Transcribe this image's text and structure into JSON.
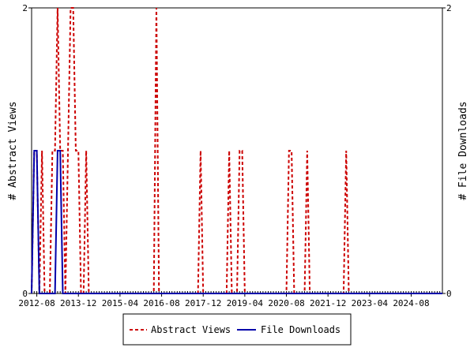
{
  "chart_data": {
    "type": "line",
    "title": "",
    "ylabel_left": "# Abstract Views",
    "ylabel_right": "# File Downloads",
    "ylim_left": [
      0,
      2
    ],
    "ylim_right": [
      0,
      2
    ],
    "yticks_left": [
      "0",
      "2"
    ],
    "yticks_right": [
      "0",
      "2"
    ],
    "x_range": [
      "2012-06",
      "2025-08"
    ],
    "x_tick_labels": [
      "2012-08",
      "2013-12",
      "2015-04",
      "2016-08",
      "2017-12",
      "2019-04",
      "2020-08",
      "2021-12",
      "2023-04",
      "2024-08"
    ],
    "grid": false,
    "legend_position": "bottom",
    "series": [
      {
        "name": "Abstract Views",
        "color": "#cc0000",
        "style": "dashed",
        "x": [
          "2012-06",
          "2012-07",
          "2012-08",
          "2012-09",
          "2012-10",
          "2012-11",
          "2012-12",
          "2013-01",
          "2013-02",
          "2013-03",
          "2013-04",
          "2013-05",
          "2013-06",
          "2013-07",
          "2013-08",
          "2013-09",
          "2013-10",
          "2013-11",
          "2013-12",
          "2014-01",
          "2014-02",
          "2014-03",
          "2014-04",
          "2014-05",
          "2014-06",
          "2014-07",
          "2014-08",
          "2014-09",
          "2014-10",
          "2014-11",
          "2014-12",
          "2015-01",
          "2015-02",
          "2015-03",
          "2015-04",
          "2015-05",
          "2015-06",
          "2015-07",
          "2015-08",
          "2015-09",
          "2015-10",
          "2015-11",
          "2015-12",
          "2016-01",
          "2016-02",
          "2016-03",
          "2016-04",
          "2016-05",
          "2016-06",
          "2016-07",
          "2016-08",
          "2016-09",
          "2016-10",
          "2016-11",
          "2016-12",
          "2017-01",
          "2017-02",
          "2017-03",
          "2017-04",
          "2017-05",
          "2017-06",
          "2017-07",
          "2017-08",
          "2017-09",
          "2017-10",
          "2017-11",
          "2017-12",
          "2018-01",
          "2018-02",
          "2018-03",
          "2018-04",
          "2018-05",
          "2018-06",
          "2018-07",
          "2018-08",
          "2018-09",
          "2018-10",
          "2018-11",
          "2018-12",
          "2019-01",
          "2019-02",
          "2019-03",
          "2019-04",
          "2019-05",
          "2019-06",
          "2019-07",
          "2019-08",
          "2019-09",
          "2019-10",
          "2019-11",
          "2019-12",
          "2020-01",
          "2020-02",
          "2020-03",
          "2020-04",
          "2020-05",
          "2020-06",
          "2020-07",
          "2020-08",
          "2020-09",
          "2020-10",
          "2020-11",
          "2020-12",
          "2021-01",
          "2021-02",
          "2021-03",
          "2021-04",
          "2021-05",
          "2021-06",
          "2021-07",
          "2021-08",
          "2021-09",
          "2021-10",
          "2021-11",
          "2021-12",
          "2022-01",
          "2022-02",
          "2022-03",
          "2022-04",
          "2022-05",
          "2022-06",
          "2022-07",
          "2022-08",
          "2022-09",
          "2022-10",
          "2022-11",
          "2022-12",
          "2023-01",
          "2023-02",
          "2023-03",
          "2023-04",
          "2023-05",
          "2023-06",
          "2023-07",
          "2023-08",
          "2023-09",
          "2023-10",
          "2023-11",
          "2023-12",
          "2024-01",
          "2024-02",
          "2024-03",
          "2024-04",
          "2024-05",
          "2024-06",
          "2024-07",
          "2024-08",
          "2024-09",
          "2024-10",
          "2024-11",
          "2024-12",
          "2025-01",
          "2025-02",
          "2025-03",
          "2025-04",
          "2025-05",
          "2025-06",
          "2025-07",
          "2025-08"
        ],
        "values": [
          0,
          1,
          1,
          0,
          1,
          0,
          0,
          0,
          1,
          1,
          2,
          1,
          1,
          0,
          1,
          2,
          2,
          1,
          1,
          0,
          0,
          1,
          0,
          0,
          0,
          0,
          0,
          0,
          0,
          0,
          0,
          0,
          0,
          0,
          0,
          0,
          0,
          0,
          0,
          0,
          0,
          0,
          0,
          0,
          0,
          0,
          0,
          0,
          2,
          0,
          0,
          0,
          0,
          0,
          0,
          0,
          0,
          0,
          0,
          0,
          0,
          0,
          0,
          0,
          0,
          1,
          0,
          0,
          0,
          0,
          0,
          0,
          0,
          0,
          0,
          0,
          1,
          0,
          0,
          0,
          1,
          1,
          0,
          0,
          0,
          0,
          0,
          0,
          0,
          0,
          0,
          0,
          0,
          0,
          0,
          0,
          0,
          0,
          0,
          1,
          1,
          0,
          0,
          0,
          0,
          0,
          1,
          0,
          0,
          0,
          0,
          0,
          0,
          0,
          0,
          0,
          0,
          0,
          0,
          0,
          0,
          1,
          0,
          0,
          0,
          0,
          0,
          0,
          0,
          0,
          0,
          0,
          0,
          0,
          0,
          0,
          0,
          0,
          0,
          0,
          0,
          0,
          0,
          0,
          0,
          0,
          0,
          0,
          0,
          0,
          0,
          0,
          0,
          0,
          0,
          0,
          0,
          0,
          0
        ]
      },
      {
        "name": "File Downloads",
        "color": "#0000aa",
        "style": "solid",
        "x": [
          "2012-06",
          "2012-07",
          "2012-08",
          "2012-09",
          "2012-10",
          "2012-11",
          "2012-12",
          "2013-01",
          "2013-02",
          "2013-03",
          "2013-04",
          "2013-05",
          "2013-06",
          "2013-07",
          "2013-08",
          "2013-09",
          "2013-10",
          "2013-11",
          "2013-12",
          "2014-01",
          "2014-02",
          "2014-03",
          "2014-04",
          "2014-05",
          "2014-06",
          "2014-07",
          "2014-08",
          "2014-09",
          "2014-10",
          "2014-11",
          "2014-12",
          "2015-01",
          "2015-02",
          "2015-03",
          "2015-04",
          "2015-05",
          "2015-06",
          "2015-07",
          "2015-08",
          "2015-09",
          "2015-10",
          "2015-11",
          "2015-12",
          "2016-01",
          "2016-02",
          "2016-03",
          "2016-04",
          "2016-05",
          "2016-06",
          "2016-07",
          "2016-08",
          "2016-09",
          "2016-10",
          "2016-11",
          "2016-12",
          "2017-01",
          "2017-02",
          "2017-03",
          "2017-04",
          "2017-05",
          "2017-06",
          "2017-07",
          "2017-08",
          "2017-09",
          "2017-10",
          "2017-11",
          "2017-12",
          "2018-01",
          "2018-02",
          "2018-03",
          "2018-04",
          "2018-05",
          "2018-06",
          "2018-07",
          "2018-08",
          "2018-09",
          "2018-10",
          "2018-11",
          "2018-12",
          "2019-01",
          "2019-02",
          "2019-03",
          "2019-04",
          "2019-05",
          "2019-06",
          "2019-07",
          "2019-08",
          "2019-09",
          "2019-10",
          "2019-11",
          "2019-12",
          "2020-01",
          "2020-02",
          "2020-03",
          "2020-04",
          "2020-05",
          "2020-06",
          "2020-07",
          "2020-08",
          "2020-09",
          "2020-10",
          "2020-11",
          "2020-12",
          "2021-01",
          "2021-02",
          "2021-03",
          "2021-04",
          "2021-05",
          "2021-06",
          "2021-07",
          "2021-08",
          "2021-09",
          "2021-10",
          "2021-11",
          "2021-12",
          "2022-01",
          "2022-02",
          "2022-03",
          "2022-04",
          "2022-05",
          "2022-06",
          "2022-07",
          "2022-08",
          "2022-09",
          "2022-10",
          "2022-11",
          "2022-12",
          "2023-01",
          "2023-02",
          "2023-03",
          "2023-04",
          "2023-05",
          "2023-06",
          "2023-07",
          "2023-08",
          "2023-09",
          "2023-10",
          "2023-11",
          "2023-12",
          "2024-01",
          "2024-02",
          "2024-03",
          "2024-04",
          "2024-05",
          "2024-06",
          "2024-07",
          "2024-08",
          "2024-09",
          "2024-10",
          "2024-11",
          "2024-12",
          "2025-01",
          "2025-02",
          "2025-03",
          "2025-04",
          "2025-05",
          "2025-06",
          "2025-07",
          "2025-08"
        ],
        "values": [
          0,
          1,
          1,
          0,
          0,
          0,
          0,
          0,
          0,
          0,
          1,
          1,
          0,
          0,
          0,
          0,
          0,
          0,
          0,
          0,
          0,
          0,
          0,
          0,
          0,
          0,
          0,
          0,
          0,
          0,
          0,
          0,
          0,
          0,
          0,
          0,
          0,
          0,
          0,
          0,
          0,
          0,
          0,
          0,
          0,
          0,
          0,
          0,
          0,
          0,
          0,
          0,
          0,
          0,
          0,
          0,
          0,
          0,
          0,
          0,
          0,
          0,
          0,
          0,
          0,
          0,
          0,
          0,
          0,
          0,
          0,
          0,
          0,
          0,
          0,
          0,
          0,
          0,
          0,
          0,
          0,
          0,
          0,
          0,
          0,
          0,
          0,
          0,
          0,
          0,
          0,
          0,
          0,
          0,
          0,
          0,
          0,
          0,
          0,
          0,
          0,
          0,
          0,
          0,
          0,
          0,
          0,
          0,
          0,
          0,
          0,
          0,
          0,
          0,
          0,
          0,
          0,
          0,
          0,
          0,
          0,
          0,
          0,
          0,
          0,
          0,
          0,
          0,
          0,
          0,
          0,
          0,
          0,
          0,
          0,
          0,
          0,
          0,
          0,
          0,
          0,
          0,
          0,
          0,
          0,
          0,
          0,
          0,
          0,
          0,
          0,
          0,
          0,
          0,
          0,
          0,
          0,
          0,
          0
        ]
      }
    ]
  }
}
